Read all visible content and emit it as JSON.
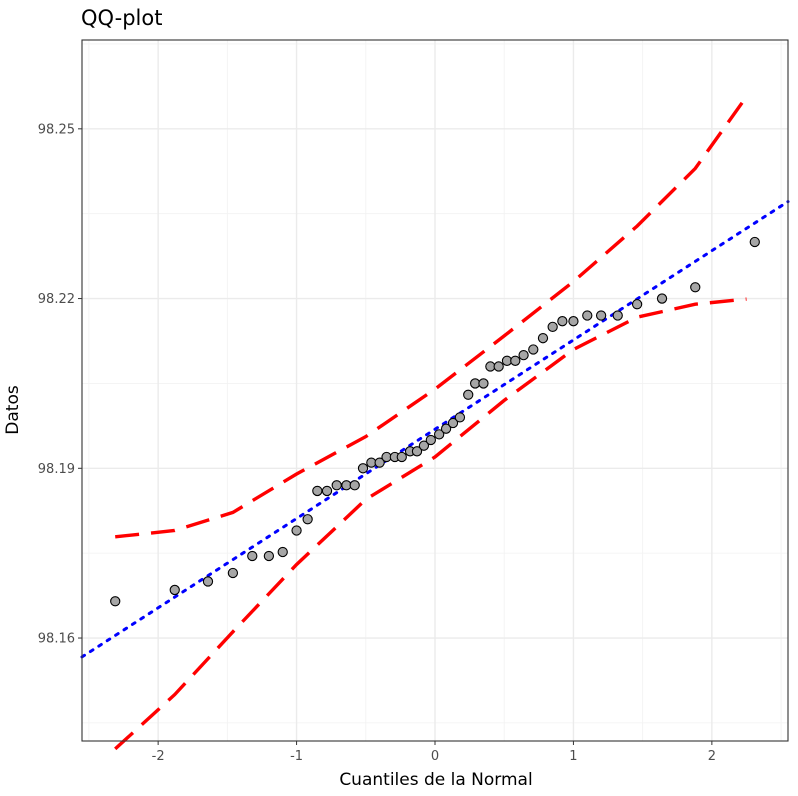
{
  "chart_data": {
    "type": "scatter",
    "title": "QQ-plot",
    "xlabel": "Cuantiles de la Normal",
    "ylabel": "Datos",
    "xlim": [
      -2.55,
      2.55
    ],
    "ylim": [
      98.1418,
      98.2657
    ],
    "x_ticks": [
      -2,
      -1,
      0,
      1,
      2
    ],
    "y_ticks": [
      98.16,
      98.19,
      98.22,
      98.25
    ],
    "x_tick_labels": [
      "-2",
      "-1",
      "0",
      "1",
      "2"
    ],
    "y_tick_labels": [
      "98.16",
      "98.19",
      "98.22",
      "98.25"
    ],
    "grid": true,
    "points": {
      "x": [
        -2.31,
        -1.88,
        -1.64,
        -1.46,
        -1.32,
        -1.2,
        -1.1,
        -1.0,
        -0.92,
        -0.85,
        -0.78,
        -0.71,
        -0.64,
        -0.58,
        -0.52,
        -0.46,
        -0.4,
        -0.35,
        -0.29,
        -0.24,
        -0.18,
        -0.13,
        -0.08,
        -0.03,
        0.03,
        0.08,
        0.13,
        0.18,
        0.24,
        0.29,
        0.35,
        0.4,
        0.46,
        0.52,
        0.58,
        0.64,
        0.71,
        0.78,
        0.85,
        0.92,
        1.0,
        1.1,
        1.2,
        1.32,
        1.46,
        1.64,
        1.88,
        2.31
      ],
      "y": [
        98.1665,
        98.1685,
        98.17,
        98.1715,
        98.1745,
        98.1745,
        98.1752,
        98.179,
        98.181,
        98.186,
        98.186,
        98.187,
        98.187,
        98.187,
        98.19,
        98.191,
        98.191,
        98.192,
        98.192,
        98.192,
        98.193,
        98.193,
        98.194,
        98.195,
        98.196,
        98.197,
        98.198,
        98.199,
        98.203,
        98.205,
        98.205,
        98.208,
        98.208,
        98.209,
        98.209,
        98.21,
        98.211,
        98.213,
        98.215,
        98.216,
        98.216,
        98.217,
        98.217,
        98.217,
        98.219,
        98.22,
        98.222,
        98.23
      ],
      "fill": "#a6a6a6",
      "stroke": "#000000"
    },
    "reference_line": {
      "intercept": 98.1969,
      "slope": 0.01578,
      "color": "#0000ff",
      "style": "dotted"
    },
    "confidence_band": {
      "color": "#ff0000",
      "style": "dashed",
      "x": [
        -2.31,
        -1.88,
        -1.46,
        -1.0,
        -0.5,
        0.0,
        0.5,
        1.0,
        1.46,
        1.88,
        2.25
      ],
      "upper": [
        98.1779,
        98.179,
        98.1822,
        98.189,
        98.1956,
        98.204,
        98.2134,
        98.223,
        98.2328,
        98.243,
        98.2557
      ],
      "lower": [
        98.1404,
        98.15,
        98.1611,
        98.173,
        98.1845,
        98.192,
        98.202,
        98.211,
        98.2167,
        98.219,
        98.2199
      ]
    },
    "colors": {
      "panel_border": "#333333",
      "major_grid": "#ebebeb",
      "minor_grid": "#f2f2f2",
      "tick_text": "#4d4d4d"
    }
  }
}
